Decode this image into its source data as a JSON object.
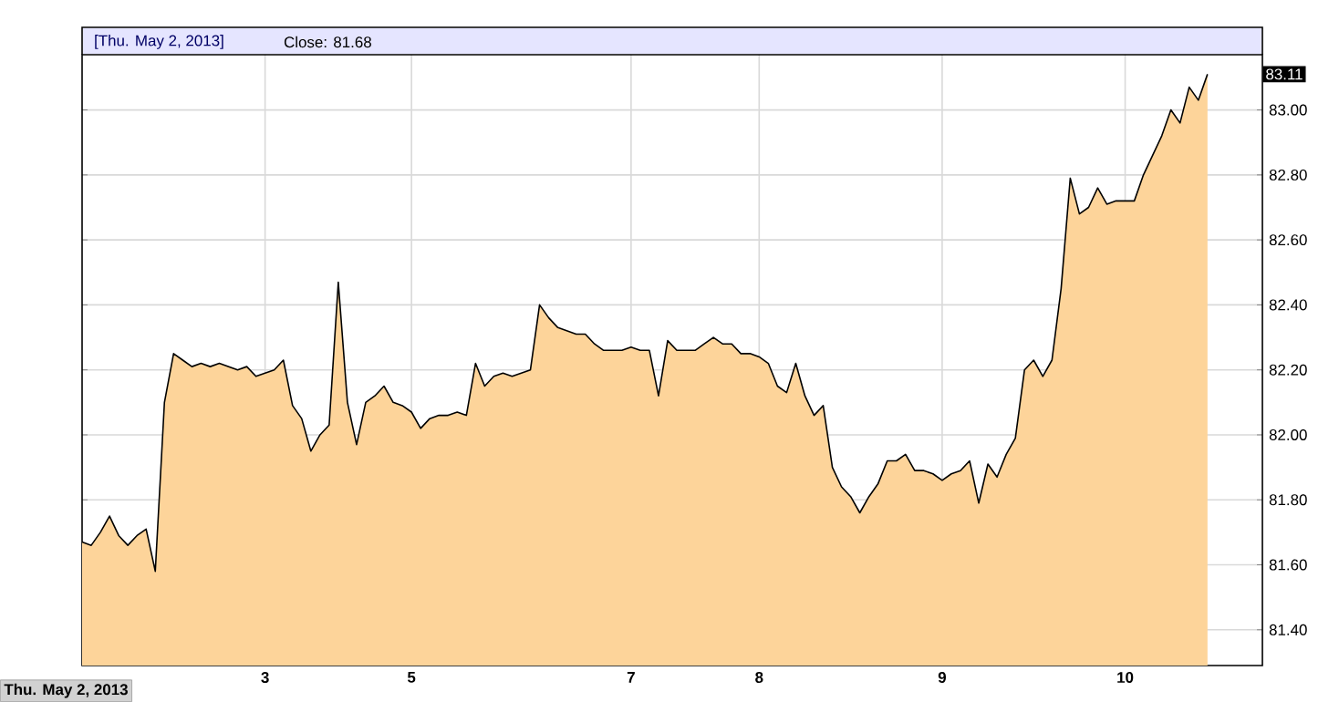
{
  "chart_data": {
    "type": "area",
    "categories": [
      null,
      null,
      null,
      null,
      null,
      null,
      null,
      null,
      null,
      null,
      null,
      null,
      null,
      null,
      null,
      null,
      null,
      null,
      null,
      null,
      "3",
      null,
      null,
      null,
      null,
      null,
      null,
      null,
      null,
      null,
      null,
      null,
      null,
      null,
      null,
      null,
      "5",
      null,
      null,
      null,
      null,
      null,
      null,
      null,
      null,
      null,
      null,
      null,
      null,
      null,
      null,
      null,
      null,
      null,
      null,
      null,
      null,
      null,
      null,
      null,
      "7",
      null,
      null,
      null,
      null,
      null,
      null,
      null,
      null,
      null,
      null,
      null,
      null,
      null,
      "8",
      null,
      null,
      null,
      null,
      null,
      null,
      null,
      null,
      null,
      null,
      null,
      null,
      null,
      null,
      null,
      null,
      null,
      null,
      null,
      "9",
      null,
      null,
      null,
      null,
      null,
      null,
      null,
      null,
      null,
      null,
      null,
      null,
      null,
      null,
      null,
      null,
      null,
      null,
      null,
      "10",
      null,
      null,
      null,
      null,
      null,
      null,
      null,
      null,
      null,
      null,
      null,
      null,
      null,
      null,
      null
    ],
    "series": [
      {
        "color": "#fdd49a",
        "values": [
          81.67,
          81.66,
          81.7,
          81.75,
          81.69,
          81.66,
          81.69,
          81.71,
          81.58,
          82.1,
          82.25,
          82.23,
          82.21,
          82.22,
          82.21,
          82.22,
          82.21,
          82.2,
          82.21,
          82.18,
          82.19,
          82.2,
          82.23,
          82.09,
          82.05,
          81.95,
          82.0,
          82.03,
          82.47,
          82.1,
          81.97,
          82.1,
          82.12,
          82.15,
          82.1,
          82.09,
          82.07,
          82.02,
          82.05,
          82.06,
          82.06,
          82.07,
          82.06,
          82.22,
          82.15,
          82.18,
          82.19,
          82.18,
          82.19,
          82.2,
          82.4,
          82.36,
          82.33,
          82.32,
          82.31,
          82.31,
          82.28,
          82.26,
          82.26,
          82.26,
          82.27,
          82.26,
          82.26,
          82.12,
          82.29,
          82.26,
          82.26,
          82.26,
          82.28,
          82.3,
          82.28,
          82.28,
          82.25,
          82.25,
          82.24,
          82.22,
          82.15,
          82.13,
          82.22,
          82.12,
          82.06,
          82.09,
          81.9,
          81.84,
          81.81,
          81.76,
          81.81,
          81.85,
          81.92,
          81.92,
          81.94,
          81.89,
          81.89,
          81.88,
          81.86,
          81.88,
          81.89,
          81.92,
          81.79,
          81.91,
          81.87,
          81.94,
          81.99,
          82.2,
          82.23,
          82.18,
          82.23,
          82.45,
          82.79,
          82.68,
          82.7,
          82.76,
          82.71,
          82.72,
          82.72,
          82.72,
          82.8,
          82.86,
          82.92,
          83.0,
          82.96,
          83.07,
          83.03,
          83.11,
          null,
          null,
          null,
          null,
          null,
          null
        ]
      }
    ],
    "ylim": [
      81.29,
      83.17
    ],
    "yticks": [
      {
        "value": 81.4,
        "label": "81.40"
      },
      {
        "value": 81.6,
        "label": "81.60"
      },
      {
        "value": 81.8,
        "label": "81.80"
      },
      {
        "value": 82.0,
        "label": "82.00"
      },
      {
        "value": 82.2,
        "label": "82.20"
      },
      {
        "value": 82.4,
        "label": "82.40"
      },
      {
        "value": 82.6,
        "label": "82.60"
      },
      {
        "value": 82.8,
        "label": "82.80"
      },
      {
        "value": 83.0,
        "label": "83.00"
      }
    ],
    "grid": true,
    "annotations": [
      "[Thu. May 2, 2013]",
      "Close: 81.68",
      "Thu. May 2, 2013",
      {
        "text": "83.11",
        "y": 83.11
      }
    ]
  }
}
